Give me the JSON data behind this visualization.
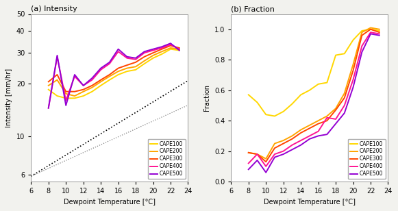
{
  "title_a": "(a) Intensity",
  "title_b": "(b) Fraction",
  "xlabel": "Dewpoint Temperature [°C]",
  "ylabel_a": "Intensity [mm/hr]",
  "ylabel_b": "Fraction",
  "dewpoint_x": [
    8,
    9,
    10,
    11,
    12,
    13,
    14,
    15,
    16,
    17,
    18,
    19,
    20,
    21,
    22,
    23
  ],
  "intensity": {
    "CAPE100": [
      18.5,
      17.0,
      16.5,
      16.5,
      17.0,
      18.0,
      19.5,
      21.0,
      22.5,
      23.5,
      24.0,
      26.0,
      28.0,
      29.5,
      31.5,
      31.0
    ],
    "CAPE200": [
      19.5,
      21.0,
      17.5,
      17.0,
      18.0,
      19.0,
      20.5,
      22.0,
      23.5,
      24.5,
      25.0,
      27.0,
      29.0,
      30.5,
      32.0,
      31.5
    ],
    "CAPE300": [
      20.5,
      22.5,
      18.0,
      18.0,
      18.5,
      19.5,
      21.0,
      22.5,
      24.5,
      25.5,
      26.5,
      28.5,
      30.0,
      31.5,
      33.0,
      32.0
    ],
    "CAPE400": [
      14.5,
      28.5,
      16.0,
      22.0,
      19.5,
      21.0,
      24.0,
      26.0,
      30.5,
      28.0,
      27.5,
      30.0,
      31.0,
      32.0,
      33.5,
      31.5
    ],
    "CAPE500": [
      14.5,
      29.0,
      15.0,
      22.5,
      19.5,
      21.5,
      24.5,
      26.5,
      31.5,
      28.5,
      28.0,
      30.5,
      31.5,
      32.5,
      34.0,
      31.0
    ]
  },
  "fraction": {
    "CAPE100": [
      0.57,
      0.52,
      0.44,
      0.43,
      0.46,
      0.51,
      0.57,
      0.6,
      0.64,
      0.65,
      0.83,
      0.84,
      0.93,
      0.99,
      1.0,
      0.99
    ],
    "CAPE200": [
      0.19,
      0.18,
      0.15,
      0.25,
      0.27,
      0.3,
      0.34,
      0.37,
      0.4,
      0.43,
      0.48,
      0.58,
      0.77,
      0.98,
      1.01,
      1.0
    ],
    "CAPE300": [
      0.19,
      0.18,
      0.13,
      0.22,
      0.25,
      0.28,
      0.32,
      0.35,
      0.38,
      0.4,
      0.47,
      0.55,
      0.73,
      0.96,
      1.0,
      0.98
    ],
    "CAPE400": [
      0.12,
      0.18,
      0.1,
      0.18,
      0.2,
      0.24,
      0.27,
      0.3,
      0.33,
      0.42,
      0.41,
      0.5,
      0.67,
      0.89,
      0.98,
      0.97
    ],
    "CAPE500": [
      0.08,
      0.14,
      0.06,
      0.16,
      0.18,
      0.21,
      0.24,
      0.28,
      0.3,
      0.31,
      0.38,
      0.45,
      0.62,
      0.85,
      0.97,
      0.96
    ]
  },
  "colors": {
    "CAPE100": "#FFD700",
    "CAPE200": "#FFA500",
    "CAPE300": "#FF4500",
    "CAPE400": "#FF1493",
    "CAPE500": "#9400D3"
  },
  "legend_labels": [
    "CAPE100",
    "CAPE200",
    "CAPE300",
    "CAPE400",
    "CAPE500"
  ],
  "xlim": [
    6,
    24
  ],
  "xticks": [
    6,
    8,
    10,
    12,
    14,
    16,
    18,
    20,
    22,
    24
  ],
  "ylim_a": [
    5.5,
    50
  ],
  "ylim_b": [
    0.0,
    1.1
  ],
  "yticks_b": [
    0.0,
    0.2,
    0.4,
    0.6,
    0.8,
    1.0
  ],
  "yticks_a": [
    6,
    10,
    20,
    30,
    40,
    50
  ],
  "background_color": "#ffffff",
  "fig_facecolor": "#f2f2ee"
}
